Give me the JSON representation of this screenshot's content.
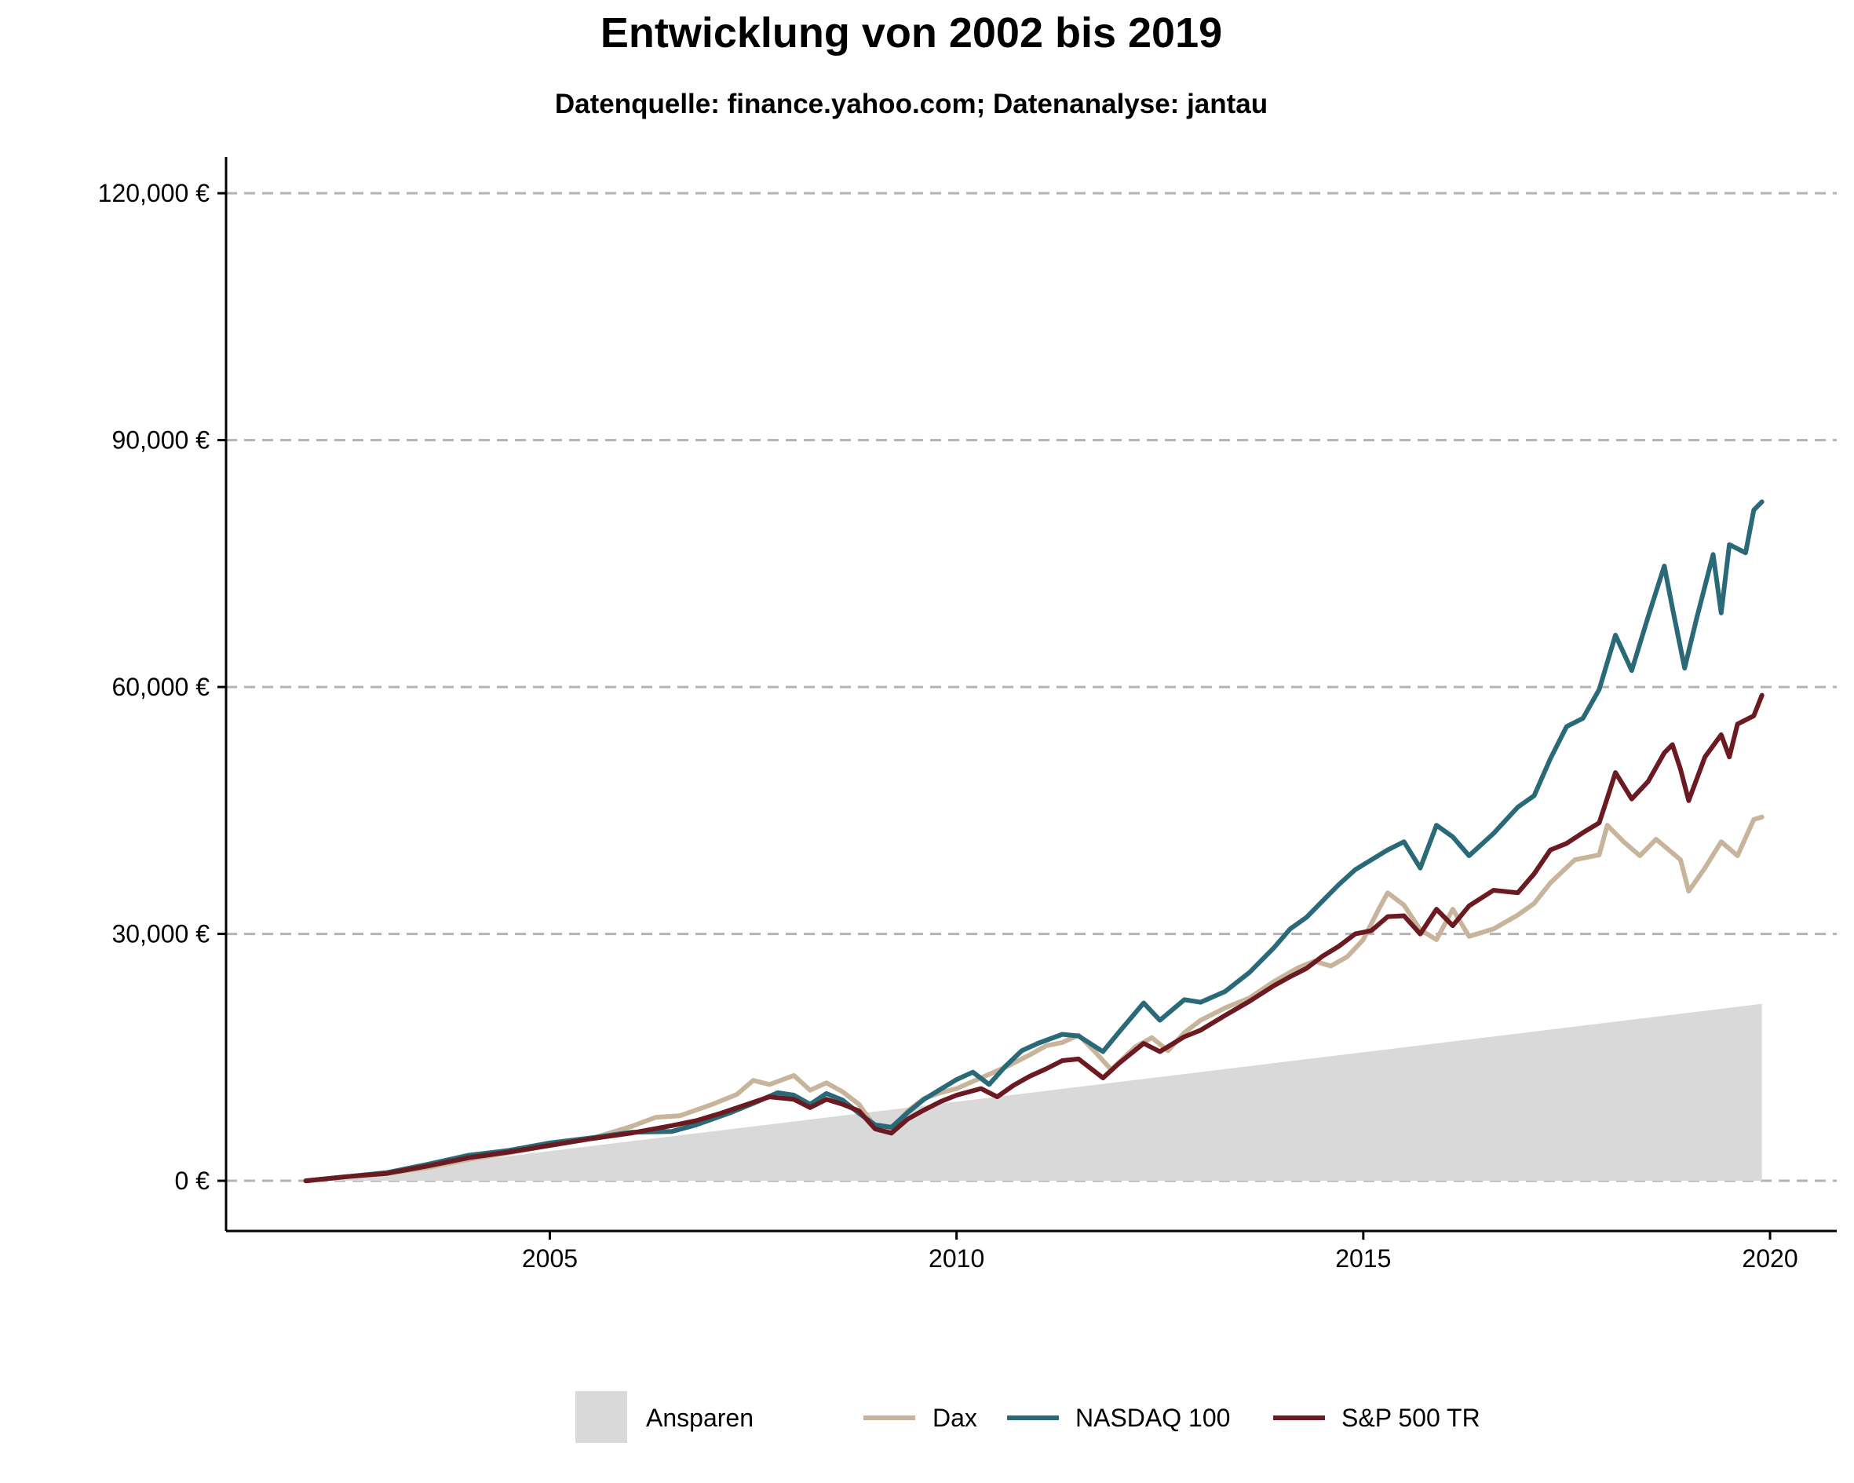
{
  "chart_data": {
    "type": "line",
    "title": "Entwicklung von 2002 bis 2019",
    "subtitle": "Datenquelle: finance.yahoo.com; Datenanalyse: jantau",
    "xlabel": "",
    "ylabel": "",
    "xlim": [
      2001.02,
      2020.82
    ],
    "ylim": [
      -6100,
      124400
    ],
    "x_ticks": [
      2005,
      2010,
      2015,
      2020
    ],
    "x_tick_labels": [
      "2005",
      "2010",
      "2015",
      "2020"
    ],
    "y_ticks": [
      0,
      30000,
      60000,
      90000,
      120000
    ],
    "y_tick_labels": [
      "0 €",
      "30,000 €",
      "60,000 €",
      "90,000 €",
      "120,000 €"
    ],
    "grid": "horizontal dashed",
    "legend_position": "bottom",
    "area": {
      "name": "Ansparen",
      "color": "#d9d9d9",
      "x": [
        2002.0,
        2019.9
      ],
      "y": [
        0,
        21500
      ]
    },
    "series": [
      {
        "name": "Dax",
        "color": "#c8b49a",
        "points": [
          [
            2002.0,
            0
          ],
          [
            2002.5,
            500
          ],
          [
            2003.0,
            900
          ],
          [
            2003.5,
            1600
          ],
          [
            2004.0,
            2600
          ],
          [
            2004.5,
            3400
          ],
          [
            2005.0,
            4300
          ],
          [
            2005.5,
            5100
          ],
          [
            2006.0,
            6600
          ],
          [
            2006.3,
            7700
          ],
          [
            2006.6,
            7900
          ],
          [
            2007.0,
            9300
          ],
          [
            2007.3,
            10500
          ],
          [
            2007.5,
            12200
          ],
          [
            2007.7,
            11700
          ],
          [
            2008.0,
            12800
          ],
          [
            2008.2,
            11000
          ],
          [
            2008.4,
            11900
          ],
          [
            2008.6,
            10800
          ],
          [
            2008.8,
            9300
          ],
          [
            2009.0,
            6500
          ],
          [
            2009.2,
            6200
          ],
          [
            2009.4,
            8500
          ],
          [
            2009.6,
            10000
          ],
          [
            2009.8,
            10700
          ],
          [
            2010.0,
            11200
          ],
          [
            2010.3,
            12500
          ],
          [
            2010.6,
            13800
          ],
          [
            2010.9,
            15300
          ],
          [
            2011.1,
            16400
          ],
          [
            2011.3,
            16800
          ],
          [
            2011.5,
            17700
          ],
          [
            2011.7,
            15700
          ],
          [
            2011.9,
            13500
          ],
          [
            2012.2,
            16300
          ],
          [
            2012.4,
            17400
          ],
          [
            2012.6,
            15800
          ],
          [
            2012.8,
            18000
          ],
          [
            2013.0,
            19500
          ],
          [
            2013.3,
            21000
          ],
          [
            2013.6,
            22200
          ],
          [
            2013.9,
            24200
          ],
          [
            2014.2,
            25900
          ],
          [
            2014.4,
            26700
          ],
          [
            2014.6,
            26100
          ],
          [
            2014.8,
            27200
          ],
          [
            2015.0,
            29300
          ],
          [
            2015.2,
            33200
          ],
          [
            2015.3,
            35000
          ],
          [
            2015.5,
            33500
          ],
          [
            2015.7,
            30500
          ],
          [
            2015.9,
            29300
          ],
          [
            2016.1,
            33000
          ],
          [
            2016.3,
            29700
          ],
          [
            2016.6,
            30600
          ],
          [
            2016.9,
            32300
          ],
          [
            2017.1,
            33700
          ],
          [
            2017.3,
            36200
          ],
          [
            2017.6,
            39000
          ],
          [
            2017.9,
            39600
          ],
          [
            2018.0,
            43200
          ],
          [
            2018.2,
            41200
          ],
          [
            2018.4,
            39500
          ],
          [
            2018.6,
            41500
          ],
          [
            2018.9,
            39000
          ],
          [
            2019.0,
            35200
          ],
          [
            2019.2,
            38000
          ],
          [
            2019.4,
            41200
          ],
          [
            2019.6,
            39500
          ],
          [
            2019.8,
            43900
          ],
          [
            2019.9,
            44200
          ]
        ]
      },
      {
        "name": "NASDAQ 100",
        "color": "#2a6a78",
        "points": [
          [
            2002.0,
            0
          ],
          [
            2002.5,
            500
          ],
          [
            2003.0,
            1000
          ],
          [
            2003.5,
            2000
          ],
          [
            2004.0,
            3100
          ],
          [
            2004.5,
            3700
          ],
          [
            2005.0,
            4600
          ],
          [
            2005.5,
            5200
          ],
          [
            2006.0,
            5900
          ],
          [
            2006.5,
            6000
          ],
          [
            2006.8,
            6800
          ],
          [
            2007.2,
            8200
          ],
          [
            2007.5,
            9400
          ],
          [
            2007.8,
            10700
          ],
          [
            2008.0,
            10400
          ],
          [
            2008.2,
            9300
          ],
          [
            2008.4,
            10600
          ],
          [
            2008.6,
            9800
          ],
          [
            2008.8,
            8200
          ],
          [
            2009.0,
            6800
          ],
          [
            2009.2,
            6500
          ],
          [
            2009.4,
            8300
          ],
          [
            2009.6,
            9900
          ],
          [
            2009.8,
            11100
          ],
          [
            2010.0,
            12300
          ],
          [
            2010.2,
            13200
          ],
          [
            2010.4,
            11700
          ],
          [
            2010.6,
            13900
          ],
          [
            2010.8,
            15800
          ],
          [
            2011.0,
            16700
          ],
          [
            2011.3,
            17800
          ],
          [
            2011.5,
            17600
          ],
          [
            2011.8,
            15700
          ],
          [
            2012.0,
            18100
          ],
          [
            2012.3,
            21600
          ],
          [
            2012.5,
            19500
          ],
          [
            2012.8,
            22000
          ],
          [
            2013.0,
            21700
          ],
          [
            2013.3,
            23000
          ],
          [
            2013.6,
            25300
          ],
          [
            2013.9,
            28300
          ],
          [
            2014.1,
            30600
          ],
          [
            2014.3,
            32000
          ],
          [
            2014.5,
            34000
          ],
          [
            2014.7,
            36000
          ],
          [
            2014.9,
            37800
          ],
          [
            2015.1,
            39000
          ],
          [
            2015.3,
            40200
          ],
          [
            2015.5,
            41200
          ],
          [
            2015.7,
            38000
          ],
          [
            2015.9,
            43200
          ],
          [
            2016.1,
            41800
          ],
          [
            2016.3,
            39500
          ],
          [
            2016.6,
            42200
          ],
          [
            2016.9,
            45400
          ],
          [
            2017.1,
            46800
          ],
          [
            2017.3,
            51300
          ],
          [
            2017.5,
            55200
          ],
          [
            2017.7,
            56200
          ],
          [
            2017.9,
            59700
          ],
          [
            2018.1,
            66300
          ],
          [
            2018.3,
            62000
          ],
          [
            2018.5,
            68500
          ],
          [
            2018.7,
            74700
          ],
          [
            2018.8,
            69600
          ],
          [
            2018.95,
            62300
          ],
          [
            2019.1,
            68400
          ],
          [
            2019.3,
            76100
          ],
          [
            2019.4,
            69000
          ],
          [
            2019.5,
            77300
          ],
          [
            2019.7,
            76300
          ],
          [
            2019.8,
            81500
          ],
          [
            2019.9,
            82500
          ]
        ]
      },
      {
        "name": "S&P 500 TR",
        "color": "#6b1a21",
        "points": [
          [
            2002.0,
            0
          ],
          [
            2002.5,
            500
          ],
          [
            2003.0,
            900
          ],
          [
            2003.5,
            1800
          ],
          [
            2004.0,
            2800
          ],
          [
            2004.5,
            3500
          ],
          [
            2005.0,
            4300
          ],
          [
            2005.5,
            5100
          ],
          [
            2006.0,
            5800
          ],
          [
            2006.5,
            6700
          ],
          [
            2006.8,
            7300
          ],
          [
            2007.1,
            8200
          ],
          [
            2007.4,
            9200
          ],
          [
            2007.7,
            10200
          ],
          [
            2008.0,
            9900
          ],
          [
            2008.2,
            8900
          ],
          [
            2008.4,
            9900
          ],
          [
            2008.6,
            9300
          ],
          [
            2008.8,
            8500
          ],
          [
            2009.0,
            6300
          ],
          [
            2009.2,
            5800
          ],
          [
            2009.4,
            7500
          ],
          [
            2009.6,
            8600
          ],
          [
            2009.8,
            9600
          ],
          [
            2010.0,
            10400
          ],
          [
            2010.3,
            11200
          ],
          [
            2010.5,
            10200
          ],
          [
            2010.7,
            11600
          ],
          [
            2010.9,
            12700
          ],
          [
            2011.1,
            13600
          ],
          [
            2011.3,
            14600
          ],
          [
            2011.5,
            14800
          ],
          [
            2011.8,
            12500
          ],
          [
            2012.0,
            14300
          ],
          [
            2012.3,
            16700
          ],
          [
            2012.5,
            15700
          ],
          [
            2012.8,
            17500
          ],
          [
            2013.0,
            18300
          ],
          [
            2013.3,
            20100
          ],
          [
            2013.6,
            21800
          ],
          [
            2013.9,
            23700
          ],
          [
            2014.1,
            24800
          ],
          [
            2014.3,
            25800
          ],
          [
            2014.5,
            27300
          ],
          [
            2014.7,
            28500
          ],
          [
            2014.9,
            30000
          ],
          [
            2015.1,
            30400
          ],
          [
            2015.3,
            32100
          ],
          [
            2015.5,
            32200
          ],
          [
            2015.7,
            30000
          ],
          [
            2015.9,
            33000
          ],
          [
            2016.1,
            31000
          ],
          [
            2016.3,
            33400
          ],
          [
            2016.6,
            35300
          ],
          [
            2016.9,
            35000
          ],
          [
            2017.1,
            37300
          ],
          [
            2017.3,
            40200
          ],
          [
            2017.5,
            41000
          ],
          [
            2017.7,
            42300
          ],
          [
            2017.9,
            43500
          ],
          [
            2018.0,
            46500
          ],
          [
            2018.1,
            49600
          ],
          [
            2018.3,
            46400
          ],
          [
            2018.5,
            48500
          ],
          [
            2018.7,
            52000
          ],
          [
            2018.8,
            53000
          ],
          [
            2018.9,
            50000
          ],
          [
            2019.0,
            46200
          ],
          [
            2019.2,
            51500
          ],
          [
            2019.4,
            54200
          ],
          [
            2019.5,
            51500
          ],
          [
            2019.6,
            55500
          ],
          [
            2019.8,
            56500
          ],
          [
            2019.9,
            59000
          ]
        ]
      }
    ]
  },
  "legend": {
    "items": [
      {
        "label": "Ansparen",
        "kind": "area",
        "color": "#d9d9d9"
      },
      {
        "label": "Dax",
        "kind": "line",
        "color": "#c8b49a"
      },
      {
        "label": "NASDAQ 100",
        "kind": "line",
        "color": "#2a6a78"
      },
      {
        "label": "S&P 500 TR",
        "kind": "line",
        "color": "#6b1a21"
      }
    ]
  }
}
